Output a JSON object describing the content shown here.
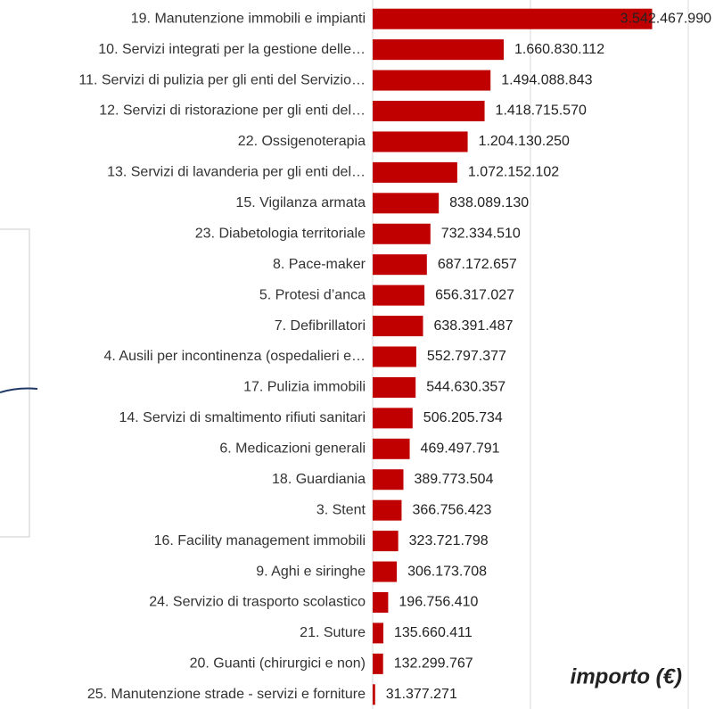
{
  "chart_data": {
    "type": "barh",
    "x_label": "importo (€)",
    "categories": [
      "19. Manutenzione immobili e impianti",
      "10. Servizi integrati per la gestione delle…",
      "11. Servizi di pulizia per gli enti del Servizio…",
      "12. Servizi di ristorazione per gli enti del…",
      "22. Ossigenoterapia",
      "13. Servizi di lavanderia per gli enti del…",
      "15. Vigilanza armata",
      "23. Diabetologia territoriale",
      "8. Pace-maker",
      "5. Protesi d’anca",
      "7. Defibrillatori",
      "4. Ausili per incontinenza (ospedalieri e…",
      "17. Pulizia immobili",
      "14. Servizi di smaltimento rifiuti sanitari",
      "6. Medicazioni generali",
      "18. Guardiania",
      "3. Stent",
      "16. Facility management immobili",
      "9. Aghi e siringhe",
      "24. Servizio di trasporto scolastico",
      "21. Suture",
      "20. Guanti (chirurgici e non)",
      "25. Manutenzione strade - servizi e forniture"
    ],
    "values": [
      3542467990,
      1660830112,
      1494088843,
      1418715570,
      1204130250,
      1072152102,
      838089130,
      732334510,
      687172657,
      656317027,
      638391487,
      552797377,
      544630357,
      506205734,
      469497791,
      389773504,
      366756423,
      323721798,
      306173708,
      196756410,
      135660411,
      132299767,
      31377271
    ],
    "value_labels": [
      "3.542.467.990",
      "1.660.830.112",
      "1.494.088.843",
      "1.418.715.570",
      "1.204.130.250",
      "1.072.152.102",
      "838.089.130",
      "732.334.510",
      "687.172.657",
      "656.317.027",
      "638.391.487",
      "552.797.377",
      "544.630.357",
      "506.205.734",
      "469.497.791",
      "389.773.504",
      "366.756.423",
      "323.721.798",
      "306.173.708",
      "196.756.410",
      "135.660.411",
      "132.299.767",
      "31.377.271"
    ],
    "color": "#c00000",
    "xlim": [
      0,
      4000000000
    ],
    "xticks": [
      0,
      2000000000,
      4000000000
    ],
    "grid": true
  }
}
